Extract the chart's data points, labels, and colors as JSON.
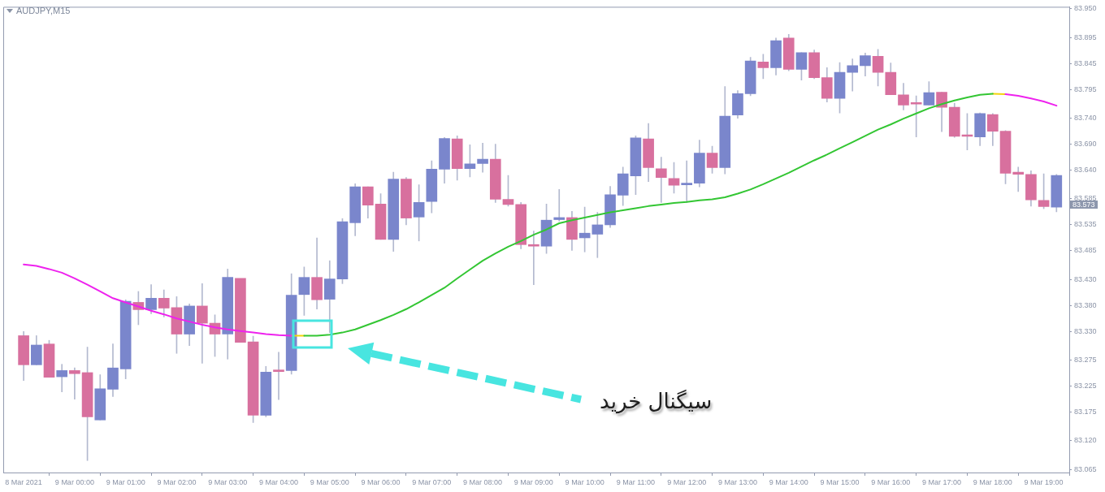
{
  "chart_data": {
    "type": "candlestick",
    "title": "AUDJPY,M15",
    "categories": [
      "8 Mar 2021",
      null,
      null,
      null,
      "9 Mar 00:00",
      null,
      null,
      null,
      "9 Mar 01:00",
      null,
      null,
      null,
      "9 Mar 02:00",
      null,
      null,
      null,
      "9 Mar 03:00",
      null,
      null,
      null,
      "9 Mar 04:00",
      null,
      null,
      null,
      "9 Mar 05:00",
      null,
      null,
      null,
      "9 Mar 06:00",
      null,
      null,
      null,
      "9 Mar 07:00",
      null,
      null,
      null,
      "9 Mar 08:00",
      null,
      null,
      null,
      "9 Mar 09:00",
      null,
      null,
      null,
      "9 Mar 10:00",
      null,
      null,
      null,
      "9 Mar 11:00",
      null,
      null,
      null,
      "9 Mar 12:00",
      null,
      null,
      null,
      "9 Mar 13:00",
      null,
      null,
      null,
      "9 Mar 14:00",
      null,
      null,
      null,
      "9 Mar 15:00",
      null,
      null,
      null,
      "9 Mar 16:00",
      null,
      null,
      null,
      "9 Mar 17:00",
      null,
      null,
      null,
      "9 Mar 18:00",
      null,
      null,
      null,
      "9 Mar 19:00",
      null
    ],
    "ohlc": [
      [
        83.322,
        83.33,
        83.236,
        83.266
      ],
      [
        83.266,
        83.322,
        83.266,
        83.304
      ],
      [
        83.306,
        83.313,
        83.242,
        83.242
      ],
      [
        83.243,
        83.267,
        83.214,
        83.255
      ],
      [
        83.255,
        83.26,
        83.2,
        83.249
      ],
      [
        83.251,
        83.3,
        83.082,
        83.166
      ],
      [
        83.16,
        83.247,
        83.16,
        83.22
      ],
      [
        83.219,
        83.306,
        83.205,
        83.26
      ],
      [
        83.258,
        83.391,
        83.239,
        83.388
      ],
      [
        83.386,
        83.407,
        83.343,
        83.372
      ],
      [
        83.372,
        83.42,
        83.364,
        83.394
      ],
      [
        83.394,
        83.41,
        83.358,
        83.375
      ],
      [
        83.376,
        83.397,
        83.288,
        83.325
      ],
      [
        83.325,
        83.383,
        83.303,
        83.379
      ],
      [
        83.379,
        83.422,
        83.269,
        83.346
      ],
      [
        83.346,
        83.362,
        83.282,
        83.325
      ],
      [
        83.325,
        83.45,
        83.277,
        83.434
      ],
      [
        83.432,
        83.432,
        83.309,
        83.309
      ],
      [
        83.31,
        83.321,
        83.155,
        83.169
      ],
      [
        83.169,
        83.263,
        83.166,
        83.252
      ],
      [
        83.253,
        83.29,
        83.199,
        83.253
      ],
      [
        83.255,
        83.441,
        83.248,
        83.4
      ],
      [
        83.401,
        83.454,
        83.361,
        83.434
      ],
      [
        83.434,
        83.51,
        83.373,
        83.391
      ],
      [
        83.392,
        83.466,
        83.328,
        83.431
      ],
      [
        83.431,
        83.547,
        83.422,
        83.541
      ],
      [
        83.539,
        83.614,
        83.514,
        83.608
      ],
      [
        83.608,
        83.608,
        83.548,
        83.573
      ],
      [
        83.575,
        83.595,
        83.507,
        83.507
      ],
      [
        83.507,
        83.636,
        83.484,
        83.623
      ],
      [
        83.623,
        83.626,
        83.535,
        83.548
      ],
      [
        83.55,
        83.612,
        83.504,
        83.578
      ],
      [
        83.58,
        83.658,
        83.558,
        83.642
      ],
      [
        83.642,
        83.703,
        83.615,
        83.701
      ],
      [
        83.7,
        83.706,
        83.621,
        83.643
      ],
      [
        83.643,
        83.689,
        83.627,
        83.652
      ],
      [
        83.653,
        83.692,
        83.636,
        83.661
      ],
      [
        83.661,
        83.69,
        83.578,
        83.584
      ],
      [
        83.584,
        83.63,
        83.571,
        83.574
      ],
      [
        83.574,
        83.578,
        83.489,
        83.497
      ],
      [
        83.497,
        83.523,
        83.42,
        83.494
      ],
      [
        83.494,
        83.575,
        83.48,
        83.544
      ],
      [
        83.545,
        83.603,
        83.542,
        83.549
      ],
      [
        83.549,
        83.561,
        83.486,
        83.507
      ],
      [
        83.51,
        83.569,
        83.483,
        83.519
      ],
      [
        83.517,
        83.559,
        83.472,
        83.535
      ],
      [
        83.535,
        83.609,
        83.53,
        83.593
      ],
      [
        83.592,
        83.646,
        83.572,
        83.633
      ],
      [
        83.629,
        83.706,
        83.593,
        83.702
      ],
      [
        83.7,
        83.73,
        83.618,
        83.645
      ],
      [
        83.643,
        83.665,
        83.578,
        83.626
      ],
      [
        83.624,
        83.655,
        83.596,
        83.611
      ],
      [
        83.612,
        83.658,
        83.578,
        83.615
      ],
      [
        83.615,
        83.698,
        83.608,
        83.673
      ],
      [
        83.673,
        83.686,
        83.634,
        83.645
      ],
      [
        83.645,
        83.801,
        83.633,
        83.744
      ],
      [
        83.746,
        83.793,
        83.74,
        83.787
      ],
      [
        83.787,
        83.857,
        83.783,
        83.85
      ],
      [
        83.848,
        83.863,
        83.816,
        83.837
      ],
      [
        83.837,
        83.894,
        83.823,
        83.889
      ],
      [
        83.894,
        83.901,
        83.831,
        83.834
      ],
      [
        83.834,
        83.866,
        83.813,
        83.866
      ],
      [
        83.866,
        83.871,
        83.816,
        83.818
      ],
      [
        83.818,
        83.837,
        83.771,
        83.778
      ],
      [
        83.778,
        83.847,
        83.75,
        83.828
      ],
      [
        83.828,
        83.854,
        83.792,
        83.841
      ],
      [
        83.841,
        83.865,
        83.821,
        83.86
      ],
      [
        83.859,
        83.872,
        83.802,
        83.828
      ],
      [
        83.828,
        83.846,
        83.785,
        83.785
      ],
      [
        83.785,
        83.807,
        83.756,
        83.765
      ],
      [
        83.767,
        83.783,
        83.704,
        83.767
      ],
      [
        83.765,
        83.81,
        83.765,
        83.789
      ],
      [
        83.79,
        83.79,
        83.714,
        83.761
      ],
      [
        83.761,
        83.769,
        83.703,
        83.705
      ],
      [
        83.705,
        83.749,
        83.679,
        83.705
      ],
      [
        83.704,
        83.75,
        83.687,
        83.749
      ],
      [
        83.747,
        83.749,
        83.687,
        83.715
      ],
      [
        83.715,
        83.716,
        83.614,
        83.634
      ],
      [
        83.636,
        83.646,
        83.599,
        83.632
      ],
      [
        83.632,
        83.639,
        83.571,
        83.583
      ],
      [
        83.582,
        83.633,
        83.566,
        83.57
      ],
      [
        83.569,
        83.632,
        83.56,
        83.63
      ]
    ],
    "colors": [
      "#d8709e",
      "#7a86cc",
      "#d8709e",
      "#7a86cc",
      "#d8709e",
      "#d8709e",
      "#7a86cc",
      "#7a86cc",
      "#7a86cc",
      "#d8709e",
      "#7a86cc",
      "#d8709e",
      "#d8709e",
      "#7a86cc",
      "#d8709e",
      "#d8709e",
      "#7a86cc",
      "#d8709e",
      "#d8709e",
      "#7a86cc",
      "#d8709e",
      "#7a86cc",
      "#7a86cc",
      "#d8709e",
      "#7a86cc",
      "#7a86cc",
      "#7a86cc",
      "#d8709e",
      "#d8709e",
      "#7a86cc",
      "#d8709e",
      "#7a86cc",
      "#7a86cc",
      "#7a86cc",
      "#d8709e",
      "#7a86cc",
      "#7a86cc",
      "#d8709e",
      "#d8709e",
      "#d8709e",
      "#d8709e",
      "#7a86cc",
      "#7a86cc",
      "#d8709e",
      "#7a86cc",
      "#7a86cc",
      "#7a86cc",
      "#7a86cc",
      "#7a86cc",
      "#d8709e",
      "#d8709e",
      "#d8709e",
      "#7a86cc",
      "#7a86cc",
      "#d8709e",
      "#7a86cc",
      "#7a86cc",
      "#7a86cc",
      "#d8709e",
      "#7a86cc",
      "#d8709e",
      "#7a86cc",
      "#d8709e",
      "#d8709e",
      "#7a86cc",
      "#7a86cc",
      "#7a86cc",
      "#d8709e",
      "#d8709e",
      "#d8709e",
      "#d8709e",
      "#7a86cc",
      "#d8709e",
      "#d8709e",
      "#d8709e",
      "#7a86cc",
      "#d8709e",
      "#d8709e",
      "#d8709e",
      "#d8709e",
      "#d8709e",
      "#7a86cc"
    ],
    "series": [
      {
        "type": "line",
        "color": "#ee22ee",
        "values": [
          83.459,
          83.456,
          83.45,
          83.443,
          83.432,
          83.42,
          83.407,
          83.394,
          83.386,
          83.378,
          83.37,
          83.363,
          83.355,
          83.349,
          83.343,
          83.338,
          83.334,
          83.331,
          83.328,
          83.325,
          83.323,
          83.322,
          null,
          null,
          null,
          null,
          null,
          null,
          null,
          null,
          null,
          null,
          null,
          null,
          null,
          null,
          null,
          null,
          null,
          null,
          null,
          null,
          null,
          null,
          null,
          null,
          null,
          null,
          null,
          null,
          null,
          null,
          null,
          null,
          null,
          null,
          null,
          null,
          null,
          null,
          null,
          null,
          null,
          null,
          null,
          null,
          null,
          null,
          null,
          null,
          null,
          null,
          null,
          null,
          null,
          null,
          null,
          83.786,
          83.783,
          83.778,
          83.772,
          83.764
        ]
      },
      {
        "type": "line",
        "color": "#33c633",
        "values": [
          null,
          null,
          null,
          null,
          null,
          null,
          null,
          null,
          null,
          null,
          null,
          null,
          null,
          null,
          null,
          null,
          null,
          null,
          null,
          null,
          null,
          null,
          83.322,
          83.322,
          83.324,
          83.328,
          83.334,
          83.343,
          83.352,
          83.362,
          83.373,
          83.386,
          83.4,
          83.414,
          83.432,
          83.449,
          83.466,
          83.48,
          83.493,
          83.504,
          83.516,
          83.526,
          83.538,
          83.544,
          83.549,
          83.554,
          83.559,
          83.563,
          83.567,
          83.571,
          83.574,
          83.577,
          83.579,
          83.582,
          83.584,
          83.588,
          83.595,
          83.603,
          83.613,
          83.624,
          83.635,
          83.647,
          83.659,
          83.67,
          83.682,
          83.694,
          83.706,
          83.718,
          83.728,
          83.739,
          83.749,
          83.759,
          83.767,
          83.774,
          83.78,
          83.785,
          83.787,
          null,
          null,
          null,
          null,
          null
        ]
      },
      {
        "type": "line",
        "color": "#f2d40c",
        "values": [
          null,
          null,
          null,
          null,
          null,
          null,
          null,
          null,
          null,
          null,
          null,
          null,
          null,
          null,
          null,
          null,
          null,
          null,
          null,
          null,
          null,
          83.322,
          83.322,
          null,
          null,
          null,
          null,
          null,
          null,
          null,
          null,
          null,
          null,
          null,
          null,
          null,
          null,
          null,
          null,
          null,
          null,
          null,
          null,
          null,
          null,
          null,
          null,
          null,
          null,
          null,
          null,
          null,
          null,
          null,
          null,
          null,
          null,
          null,
          null,
          null,
          null,
          null,
          null,
          null,
          null,
          null,
          null,
          null,
          null,
          null,
          null,
          null,
          null,
          null,
          null,
          null,
          83.787,
          83.786,
          null,
          null,
          null,
          null
        ]
      }
    ],
    "ylim": [
      83.059,
      83.954
    ],
    "yticks": [
      83.065,
      {
        "value": 83.12,
        "label": "83.120"
      },
      83.175,
      83.225,
      83.275,
      {
        "value": 83.33,
        "label": "83.330"
      },
      {
        "value": 83.38,
        "label": "83.380"
      },
      {
        "value": 83.43,
        "label": "83.430"
      },
      83.485,
      83.535,
      83.585,
      {
        "value": 83.64,
        "label": "83.640"
      },
      {
        "value": 83.69,
        "label": "83.690"
      },
      {
        "value": 83.74,
        "label": "83.740"
      },
      83.795,
      83.845,
      83.895,
      {
        "value": 83.95,
        "label": "83.950"
      }
    ],
    "annotations": [
      "83.573",
      "سیگنال خرید"
    ]
  }
}
